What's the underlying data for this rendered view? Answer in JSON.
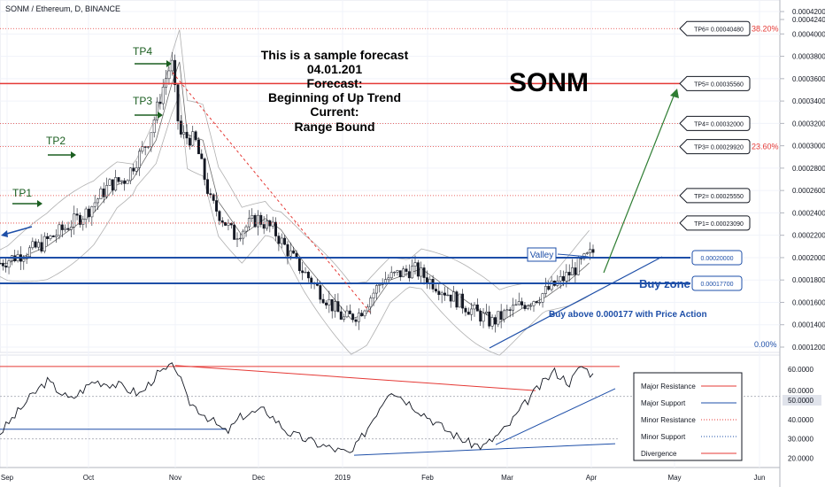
{
  "header": {
    "symbol": "SONM / Ethereum, D, BINANCE"
  },
  "annotations": {
    "forecast_lines": [
      "This is a sample forecast",
      "04.01.201",
      "Forecast:",
      "Beginning of Up Trend",
      "Current:",
      "Range Bound"
    ],
    "big_title": "SONM",
    "buy_zone": "Buy zone",
    "buy_above": "Buy above 0.000177 with Price Action",
    "valley": "Valley",
    "tp_labels": [
      "TP1",
      "TP2",
      "TP3",
      "TP4"
    ]
  },
  "chart_data": [
    {
      "type": "candlestick",
      "y_ticks": [
        "0.00042400",
        "0.00042000",
        "0.00040000",
        "0.00038000",
        "0.00036000",
        "0.00034000",
        "0.00032000",
        "0.00030000",
        "0.00028000",
        "0.00026000",
        "0.00024000",
        "0.00022000",
        "0.00020000",
        "0.00018000",
        "0.00016000",
        "0.00014000",
        "0.00012000"
      ],
      "ylim": [
        0.00012,
        0.000424
      ],
      "x_ticks": [
        "Sep",
        "Oct",
        "Nov",
        "Dec",
        "2019",
        "Feb",
        "Mar",
        "Apr",
        "May",
        "Jun"
      ],
      "targets": [
        {
          "label": "TP6= 0.00040480",
          "value": 0.0004048,
          "pct": "38.20%"
        },
        {
          "label": "TP5= 0.00035560",
          "value": 0.0003556
        },
        {
          "label": "TP4= 0.00032000",
          "value": 0.00032
        },
        {
          "label": "TP3= 0.00029920",
          "value": 0.0002992,
          "pct": "23.60%"
        },
        {
          "label": "TP2= 0.00025550",
          "value": 0.0002555
        },
        {
          "label": "TP1= 0.00023090",
          "value": 0.0002309
        }
      ],
      "zone": {
        "top": 0.0002,
        "bottom": 0.000177,
        "top_label": "0.00020000",
        "bottom_label": "0.00017700"
      },
      "zero_pct": "0.00%",
      "price_path": [
        {
          "t": 0,
          "v": 0.000195
        },
        {
          "t": 0.05,
          "v": 0.00021
        },
        {
          "t": 0.08,
          "v": 0.000225
        },
        {
          "t": 0.11,
          "v": 0.00024
        },
        {
          "t": 0.14,
          "v": 0.000265
        },
        {
          "t": 0.16,
          "v": 0.00027
        },
        {
          "t": 0.19,
          "v": 0.000305
        },
        {
          "t": 0.21,
          "v": 0.000355
        },
        {
          "t": 0.22,
          "v": 0.000375
        },
        {
          "t": 0.23,
          "v": 0.00031
        },
        {
          "t": 0.25,
          "v": 0.000305
        },
        {
          "t": 0.27,
          "v": 0.00025
        },
        {
          "t": 0.3,
          "v": 0.00022
        },
        {
          "t": 0.33,
          "v": 0.000235
        },
        {
          "t": 0.35,
          "v": 0.000225
        },
        {
          "t": 0.38,
          "v": 0.000195
        },
        {
          "t": 0.41,
          "v": 0.00017
        },
        {
          "t": 0.44,
          "v": 0.000145
        },
        {
          "t": 0.46,
          "v": 0.00015
        },
        {
          "t": 0.49,
          "v": 0.00018
        },
        {
          "t": 0.53,
          "v": 0.00019
        },
        {
          "t": 0.56,
          "v": 0.000175
        },
        {
          "t": 0.6,
          "v": 0.000155
        },
        {
          "t": 0.63,
          "v": 0.000142
        },
        {
          "t": 0.66,
          "v": 0.000155
        },
        {
          "t": 0.69,
          "v": 0.000165
        },
        {
          "t": 0.72,
          "v": 0.00018
        },
        {
          "t": 0.74,
          "v": 0.000192
        },
        {
          "t": 0.76,
          "v": 0.000205
        }
      ]
    },
    {
      "type": "line",
      "name": "indicator",
      "y_ticks": [
        "60.0000",
        "60.0000",
        "50.0000",
        "40.0000",
        "30.0000",
        "20.0000"
      ],
      "ylim": [
        17,
        72
      ],
      "values": [
        {
          "t": 0,
          "v": 33
        },
        {
          "t": 0.04,
          "v": 52
        },
        {
          "t": 0.06,
          "v": 60
        },
        {
          "t": 0.09,
          "v": 50
        },
        {
          "t": 0.12,
          "v": 60
        },
        {
          "t": 0.15,
          "v": 58
        },
        {
          "t": 0.18,
          "v": 53
        },
        {
          "t": 0.2,
          "v": 63
        },
        {
          "t": 0.225,
          "v": 68
        },
        {
          "t": 0.24,
          "v": 50
        },
        {
          "t": 0.27,
          "v": 40
        },
        {
          "t": 0.29,
          "v": 33
        },
        {
          "t": 0.31,
          "v": 42
        },
        {
          "t": 0.34,
          "v": 45
        },
        {
          "t": 0.37,
          "v": 33
        },
        {
          "t": 0.41,
          "v": 27
        },
        {
          "t": 0.45,
          "v": 22
        },
        {
          "t": 0.47,
          "v": 35
        },
        {
          "t": 0.5,
          "v": 56
        },
        {
          "t": 0.53,
          "v": 47
        },
        {
          "t": 0.57,
          "v": 35
        },
        {
          "t": 0.6,
          "v": 28
        },
        {
          "t": 0.62,
          "v": 26
        },
        {
          "t": 0.65,
          "v": 36
        },
        {
          "t": 0.68,
          "v": 52
        },
        {
          "t": 0.71,
          "v": 65
        },
        {
          "t": 0.73,
          "v": 59
        },
        {
          "t": 0.745,
          "v": 68
        },
        {
          "t": 0.76,
          "v": 63
        }
      ],
      "legend": [
        {
          "label": "Major Resistance",
          "color": "#e53935",
          "style": "solid"
        },
        {
          "label": "Major Support",
          "color": "#1e4fa8",
          "style": "solid"
        },
        {
          "label": "Minor Resistance",
          "color": "#e53935",
          "style": "dotted"
        },
        {
          "label": "Minor Support",
          "color": "#1e4fa8",
          "style": "dotted"
        },
        {
          "label": "Divergence",
          "color": "#e53935",
          "style": "solid"
        }
      ]
    }
  ],
  "colors": {
    "green": "#2e7d32",
    "red": "#e53935",
    "blue": "#1e4fa8",
    "dark_green": "#1b5e20"
  }
}
